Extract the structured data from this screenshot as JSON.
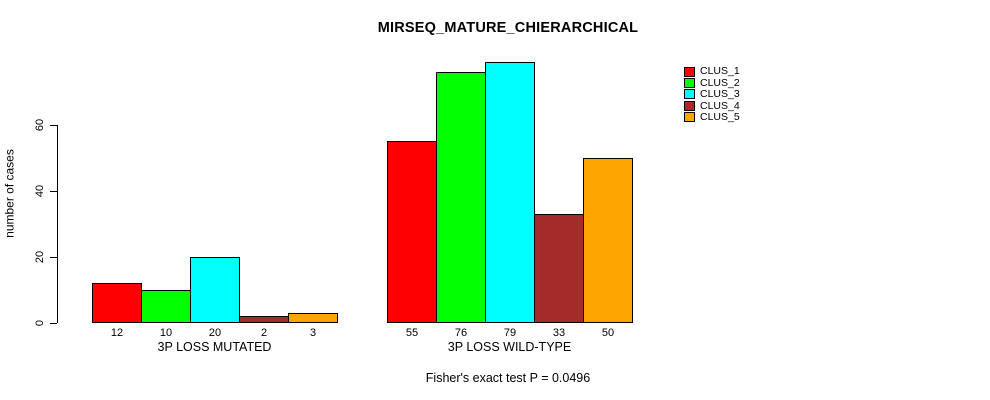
{
  "chart_data": {
    "type": "bar",
    "title": "MIRSEQ_MATURE_CHIERARCHICAL",
    "ylabel": "number of cases",
    "xlabel": "",
    "caption": "Fisher's exact test P = 0.0496",
    "yticks": [
      0,
      20,
      40,
      60
    ],
    "ylim": [
      0,
      79
    ],
    "grid": false,
    "legend_position": "top-right",
    "bar_border_color": "#000000",
    "groups": [
      "3P LOSS MUTATED",
      "3P LOSS WILD-TYPE"
    ],
    "series": [
      {
        "name": "CLUS_1",
        "color": "#FF0000",
        "values": [
          12,
          55
        ]
      },
      {
        "name": "CLUS_2",
        "color": "#00FF00",
        "values": [
          10,
          76
        ]
      },
      {
        "name": "CLUS_3",
        "color": "#00FFFF",
        "values": [
          20,
          79
        ]
      },
      {
        "name": "CLUS_4",
        "color": "#A52A2A",
        "values": [
          2,
          33
        ]
      },
      {
        "name": "CLUS_5",
        "color": "#FFA500",
        "values": [
          3,
          50
        ]
      }
    ],
    "bar_value_labels": [
      [
        12,
        10,
        20,
        2,
        3
      ],
      [
        55,
        76,
        79,
        33,
        50
      ]
    ]
  }
}
